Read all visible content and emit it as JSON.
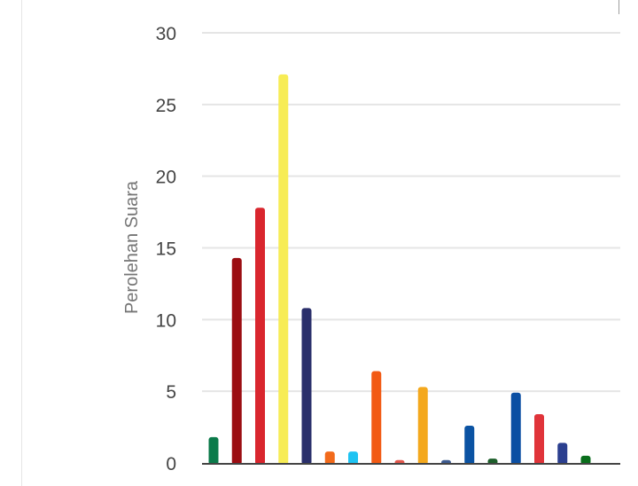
{
  "chart_data": {
    "type": "bar",
    "title": "",
    "xlabel": "",
    "ylabel": "Perolehan Suara",
    "ylim": [
      0,
      30
    ],
    "yticks": [
      "0",
      "5",
      "10",
      "15",
      "20",
      "25",
      "30"
    ],
    "grid": true,
    "values": [
      1.8,
      14.3,
      17.8,
      27.1,
      10.8,
      0.8,
      0.8,
      6.4,
      0.2,
      5.3,
      0.2,
      2.6,
      0.3,
      4.9,
      3.4,
      1.4,
      0.5
    ],
    "colors": [
      "#0b7a4a",
      "#9b0d12",
      "#d9262e",
      "#f7ec55",
      "#2a2f6b",
      "#f26a1b",
      "#1ec3f2",
      "#f25a14",
      "#e2574c",
      "#f4a81d",
      "#3d5a8f",
      "#0b53a3",
      "#1d5e2a",
      "#0b4fa3",
      "#e0343a",
      "#2b3f8f",
      "#0a6e1c"
    ]
  }
}
